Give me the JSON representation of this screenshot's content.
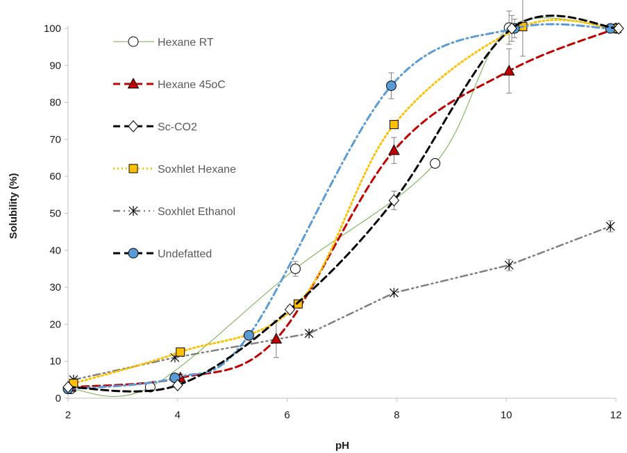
{
  "chart_data": {
    "type": "line",
    "xlabel": "pH",
    "ylabel": "Solubility (%)",
    "xlim": [
      2,
      12
    ],
    "ylim": [
      0,
      100
    ],
    "xticks": [
      2,
      4,
      6,
      8,
      10,
      12
    ],
    "yticks": [
      0,
      10,
      20,
      30,
      40,
      50,
      60,
      70,
      80,
      90,
      100
    ],
    "grid": false,
    "legend_position": "top-left",
    "series": [
      {
        "name": "Hexane RT",
        "color": "#70ad47",
        "line_style": "solid-smooth",
        "marker": "circle-open",
        "points": [
          [
            2.05,
            2.5
          ],
          [
            3.5,
            3.0
          ],
          [
            6.15,
            35.0
          ],
          [
            8.7,
            63.5
          ],
          [
            10.05,
            100.2
          ],
          [
            12.0,
            100.0
          ]
        ],
        "errors": [
          0.5,
          0.5,
          2.0,
          1.0,
          4.5,
          0.5
        ]
      },
      {
        "name": "Hexane 45oC",
        "color": "#c00000",
        "line_style": "dash-smooth",
        "marker": "triangle-filled",
        "points": [
          [
            2.05,
            3.0
          ],
          [
            4.05,
            5.5
          ],
          [
            5.8,
            16.0
          ],
          [
            7.95,
            67.0
          ],
          [
            10.05,
            88.5
          ],
          [
            12.0,
            100.0
          ]
        ],
        "errors": [
          0.5,
          1.0,
          5.0,
          3.5,
          6.0,
          0.5
        ]
      },
      {
        "name": "Sc-CO2",
        "color": "#000000",
        "line_style": "dash-smooth",
        "marker": "diamond-open",
        "points": [
          [
            2.0,
            3.0
          ],
          [
            4.0,
            3.5
          ],
          [
            6.05,
            24.0
          ],
          [
            7.95,
            53.5
          ],
          [
            10.1,
            100.0
          ],
          [
            12.05,
            100.0
          ]
        ],
        "errors": [
          0.5,
          0.5,
          1.0,
          2.5,
          3.5,
          0.5
        ]
      },
      {
        "name": "Soxhlet Hexane",
        "color": "#ffc000",
        "line_style": "dot-smooth",
        "marker": "square-filled",
        "points": [
          [
            2.1,
            4.0
          ],
          [
            4.05,
            12.5
          ],
          [
            6.2,
            25.5
          ],
          [
            7.95,
            74.0
          ],
          [
            10.3,
            100.5
          ],
          [
            12.0,
            100.0
          ]
        ],
        "errors": [
          0.5,
          0.5,
          0.5,
          0.5,
          8.0,
          0.5
        ]
      },
      {
        "name": "Soxhlet Ethanol",
        "color": "#7f7f7f",
        "line_style": "dash-dot-dot",
        "marker": "asterisk",
        "points": [
          [
            2.1,
            5.0
          ],
          [
            3.95,
            11.0
          ],
          [
            6.4,
            17.5
          ],
          [
            7.95,
            28.5
          ],
          [
            10.05,
            36.0
          ],
          [
            11.9,
            46.5
          ]
        ],
        "errors": [
          0.5,
          0.5,
          0.5,
          0.5,
          1.5,
          1.5
        ]
      },
      {
        "name": "Undefatted",
        "color": "#5b9bd5",
        "line_style": "dash-dot-smooth",
        "marker": "circle-filled",
        "points": [
          [
            2.0,
            2.5
          ],
          [
            3.95,
            5.5
          ],
          [
            5.3,
            17.0
          ],
          [
            7.9,
            84.5
          ],
          [
            10.15,
            100.0
          ],
          [
            11.9,
            100.0
          ]
        ],
        "errors": [
          0.5,
          1.0,
          0.5,
          3.5,
          2.5,
          0.5
        ]
      }
    ]
  }
}
